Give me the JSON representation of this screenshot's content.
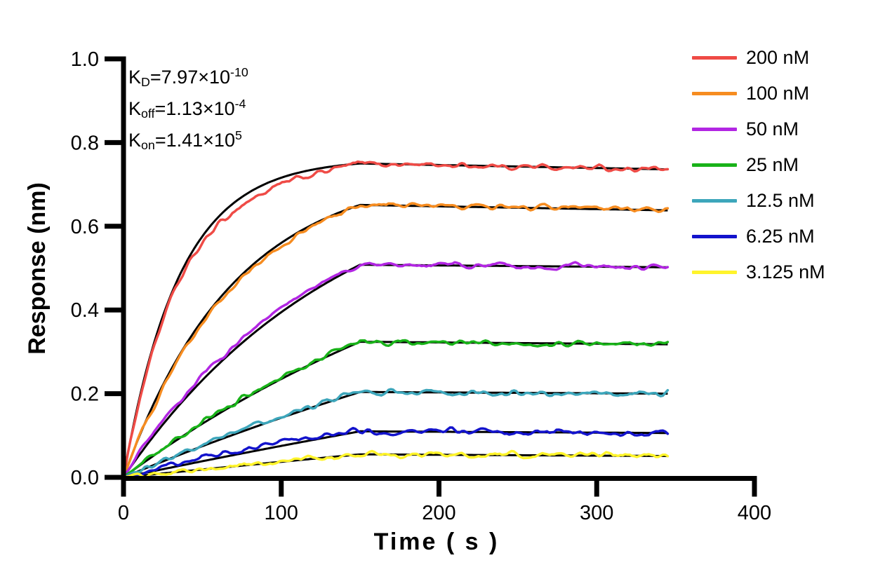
{
  "page": {
    "background": "#FFFFFF"
  },
  "annotations": {
    "kd": {
      "k": "K",
      "sub": "D",
      "rest": "=7.97×10",
      "exp": "-10"
    },
    "koff": {
      "k": "K",
      "sub": "off",
      "rest": "=1.13×10",
      "exp": "-4"
    },
    "kon": {
      "k": "K",
      "sub": "on",
      "rest": "=1.41×10",
      "exp": "5"
    }
  },
  "chart_data": {
    "type": "line",
    "title": "",
    "xlabel": "Time ( s )",
    "ylabel": "Response (nm)",
    "xlim": [
      0,
      400
    ],
    "ylim": [
      0.0,
      1.0
    ],
    "x_tick_values": [
      0,
      100,
      200,
      300,
      400
    ],
    "x_tick_labels": [
      "0",
      "100",
      "200",
      "300",
      "400"
    ],
    "y_tick_values": [
      0,
      0.2,
      0.4,
      0.6,
      0.8,
      1.0
    ],
    "y_tick_labels": [
      "0.0",
      "0.2",
      "0.4",
      "0.6",
      "0.8",
      "1.0"
    ],
    "grid": false,
    "legend_position": "right-outside",
    "axis_color": "#000000",
    "fit_line_color": "#000000",
    "kinetics": {
      "KD_M": 7.97e-10,
      "koff_per_s": 0.000113,
      "kon_per_M_s": 141000
    },
    "phases": {
      "association_start_s": 0,
      "association_end_s": 150,
      "dissociation_end_s": 345
    },
    "series": [
      {
        "name": "200 nM",
        "concentration_nM": 200,
        "color": "#EF4B46",
        "kobs_per_s": 0.0283,
        "response_at_150s": 0.75,
        "response_at_345s": 0.736,
        "assoc_bias": -0.02,
        "noise_amp": 0.006
      },
      {
        "name": "100 nM",
        "concentration_nM": 100,
        "color": "#F68C20",
        "kobs_per_s": 0.0142,
        "response_at_150s": 0.651,
        "response_at_345s": 0.638,
        "assoc_bias": -0.01,
        "noise_amp": 0.0058
      },
      {
        "name": "50 nM",
        "concentration_nM": 50,
        "color": "#B226E3",
        "kobs_per_s": 0.00717,
        "response_at_150s": 0.508,
        "response_at_345s": 0.502,
        "assoc_bias": 0.01,
        "noise_amp": 0.0058
      },
      {
        "name": "25 nM",
        "concentration_nM": 25,
        "color": "#19B219",
        "kobs_per_s": 0.00366,
        "response_at_150s": 0.324,
        "response_at_345s": 0.318,
        "assoc_bias": 0.004,
        "noise_amp": 0.0055
      },
      {
        "name": "12.5 nM",
        "concentration_nM": 12.5,
        "color": "#3DA6BB",
        "kobs_per_s": 0.00189,
        "response_at_150s": 0.204,
        "response_at_345s": 0.2,
        "assoc_bias": 0.005,
        "noise_amp": 0.006
      },
      {
        "name": "6.25 nM",
        "concentration_nM": 6.25,
        "color": "#1313CC",
        "kobs_per_s": 0.00101,
        "response_at_150s": 0.11,
        "response_at_345s": 0.106,
        "assoc_bias": 0.012,
        "noise_amp": 0.0065
      },
      {
        "name": "3.125 nM",
        "concentration_nM": 3.125,
        "color": "#FFF42B",
        "kobs_per_s": 0.00055,
        "response_at_150s": 0.055,
        "response_at_345s": 0.051,
        "assoc_bias": 0.002,
        "noise_amp": 0.006
      }
    ]
  }
}
